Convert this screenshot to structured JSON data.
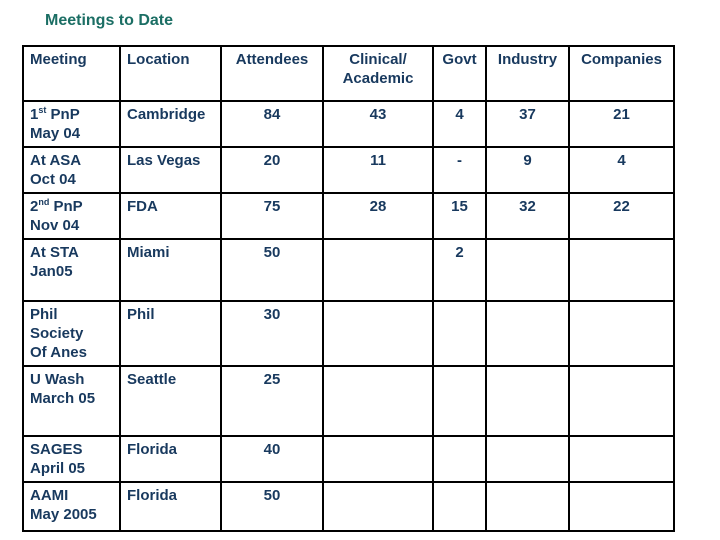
{
  "slide": {
    "title": "Meetings to Date"
  },
  "colors": {
    "title": "#1b6e64",
    "text": "#18395e",
    "border": "#000000"
  },
  "table": {
    "columns": [
      {
        "key": "meeting",
        "label_lines": [
          "Meeting"
        ],
        "align": "left"
      },
      {
        "key": "location",
        "label_lines": [
          "Location"
        ],
        "align": "left"
      },
      {
        "key": "attendees",
        "label_lines": [
          "Attendees"
        ],
        "align": "center"
      },
      {
        "key": "clinical_academic",
        "label_lines": [
          "Clinical/",
          "Academic"
        ],
        "align": "center"
      },
      {
        "key": "govt",
        "label_lines": [
          "Govt"
        ],
        "align": "center"
      },
      {
        "key": "industry",
        "label_lines": [
          "Industry"
        ],
        "align": "center"
      },
      {
        "key": "companies",
        "label_lines": [
          "Companies"
        ],
        "align": "center"
      }
    ],
    "rows": [
      {
        "meeting_lines": [
          {
            "pre": "1",
            "sup": "st",
            "post": " PnP"
          },
          {
            "pre": "May 04"
          }
        ],
        "location": "Cambridge",
        "attendees": "84",
        "clinical_academic": "43",
        "govt": "4",
        "industry": "37",
        "companies": "21"
      },
      {
        "meeting_lines": [
          {
            "pre": "At ASA"
          },
          {
            "pre": "Oct 04"
          }
        ],
        "location": "Las Vegas",
        "attendees": "20",
        "clinical_academic": "11",
        "govt": "-",
        "industry": "9",
        "companies": "4"
      },
      {
        "meeting_lines": [
          {
            "pre": "2",
            "sup": "nd",
            "post": " PnP"
          },
          {
            "pre": "Nov 04"
          }
        ],
        "location": "FDA",
        "attendees": "75",
        "clinical_academic": "28",
        "govt": "15",
        "industry": "32",
        "companies": "22"
      },
      {
        "meeting_lines": [
          {
            "pre": "At STA"
          },
          {
            "pre": "Jan05"
          }
        ],
        "location": "Miami",
        "attendees": "50",
        "clinical_academic": "",
        "govt": "2",
        "industry": "",
        "companies": ""
      },
      {
        "meeting_lines": [
          {
            "pre": "Phil"
          },
          {
            "pre": "Society"
          },
          {
            "pre": "Of Anes"
          }
        ],
        "location": "Phil",
        "attendees": "30",
        "clinical_academic": "",
        "govt": "",
        "industry": "",
        "companies": ""
      },
      {
        "meeting_lines": [
          {
            "pre": "U Wash"
          },
          {
            "pre": "March 05"
          }
        ],
        "location": "Seattle",
        "attendees": "25",
        "clinical_academic": "",
        "govt": "",
        "industry": "",
        "companies": ""
      },
      {
        "meeting_lines": [
          {
            "pre": "SAGES"
          },
          {
            "pre": "April 05"
          }
        ],
        "location": "Florida",
        "attendees": "40",
        "clinical_academic": "",
        "govt": "",
        "industry": "",
        "companies": ""
      },
      {
        "meeting_lines": [
          {
            "pre": "AAMI"
          },
          {
            "pre": "May 2005"
          }
        ],
        "location": "Florida",
        "attendees": "50",
        "clinical_academic": "",
        "govt": "",
        "industry": "",
        "companies": ""
      }
    ]
  }
}
